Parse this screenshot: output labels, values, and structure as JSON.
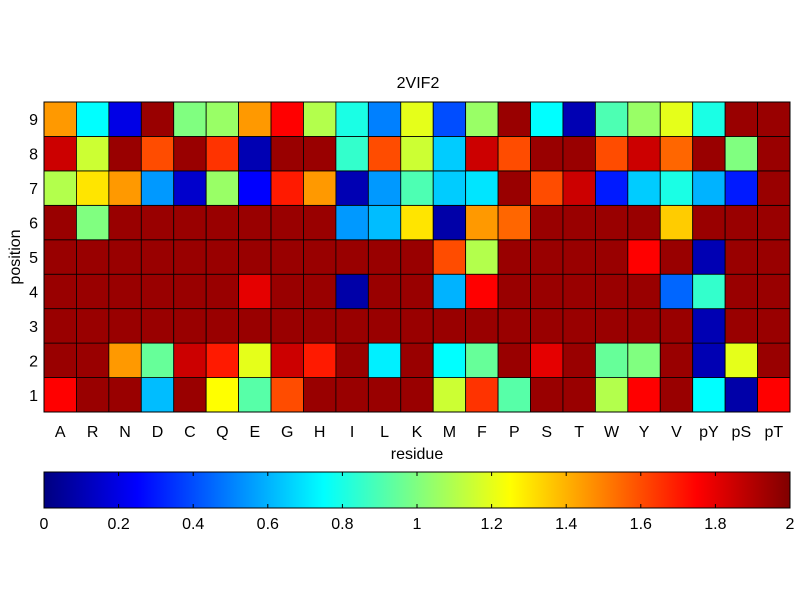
{
  "chart_data": {
    "type": "heatmap",
    "title": "2VIF2",
    "xlabel": "residue",
    "ylabel": "position",
    "x": [
      "A",
      "R",
      "N",
      "D",
      "C",
      "Q",
      "E",
      "G",
      "H",
      "I",
      "L",
      "K",
      "M",
      "F",
      "P",
      "S",
      "T",
      "W",
      "Y",
      "V",
      "pY",
      "pS",
      "pT"
    ],
    "y": [
      "1",
      "2",
      "3",
      "4",
      "5",
      "6",
      "7",
      "8",
      "9"
    ],
    "values": [
      [
        1.75,
        1.95,
        1.95,
        0.62,
        1.95,
        1.25,
        0.92,
        1.6,
        1.95,
        1.95,
        1.95,
        1.95,
        1.15,
        1.65,
        0.92,
        1.95,
        1.95,
        1.1,
        1.75,
        1.95,
        0.75,
        0.08,
        1.75
      ],
      [
        1.95,
        1.95,
        1.45,
        0.95,
        1.85,
        1.7,
        1.2,
        1.85,
        1.7,
        1.95,
        0.72,
        1.95,
        0.75,
        0.95,
        1.95,
        1.8,
        1.95,
        0.95,
        1.0,
        1.95,
        0.1,
        1.2,
        1.95
      ],
      [
        1.95,
        1.95,
        1.95,
        1.95,
        1.95,
        1.95,
        1.95,
        1.95,
        1.95,
        1.95,
        1.95,
        1.95,
        1.95,
        1.95,
        1.95,
        1.95,
        1.95,
        1.95,
        1.95,
        1.95,
        0.1,
        1.95,
        1.95
      ],
      [
        1.95,
        1.95,
        1.95,
        1.95,
        1.95,
        1.95,
        1.8,
        1.95,
        1.95,
        0.08,
        1.95,
        1.95,
        0.6,
        1.75,
        1.95,
        1.95,
        1.95,
        1.95,
        1.95,
        0.45,
        0.85,
        1.95,
        1.95
      ],
      [
        1.95,
        1.95,
        1.95,
        1.95,
        1.95,
        1.95,
        1.95,
        1.95,
        1.95,
        1.95,
        1.95,
        1.95,
        1.6,
        1.1,
        1.95,
        1.95,
        1.95,
        1.95,
        1.75,
        1.95,
        0.1,
        1.95,
        1.95
      ],
      [
        1.95,
        1.0,
        1.95,
        1.95,
        1.95,
        1.95,
        1.95,
        1.95,
        1.95,
        0.55,
        0.62,
        1.3,
        0.08,
        1.45,
        1.55,
        1.95,
        1.95,
        1.95,
        1.95,
        1.35,
        1.95,
        1.95,
        1.95
      ],
      [
        1.1,
        1.3,
        1.45,
        0.55,
        0.15,
        1.05,
        0.25,
        1.7,
        1.45,
        0.1,
        0.55,
        0.9,
        0.65,
        0.7,
        1.95,
        1.6,
        1.85,
        0.3,
        0.65,
        0.8,
        0.6,
        0.3,
        1.95
      ],
      [
        1.85,
        1.15,
        1.95,
        1.6,
        1.95,
        1.65,
        0.1,
        1.95,
        1.95,
        0.85,
        1.6,
        1.15,
        0.65,
        1.85,
        1.6,
        1.95,
        1.95,
        1.6,
        1.85,
        1.55,
        1.95,
        1.0,
        1.95
      ],
      [
        1.45,
        0.75,
        0.2,
        1.95,
        1.0,
        1.05,
        1.45,
        1.75,
        1.1,
        0.8,
        0.5,
        1.2,
        0.4,
        1.05,
        1.95,
        0.75,
        0.1,
        0.9,
        1.05,
        1.2,
        0.8,
        1.95,
        1.95
      ]
    ],
    "clim": [
      0,
      2
    ],
    "colormap": "jet",
    "colorbar": {
      "orientation": "horizontal",
      "placement": "bottom",
      "ticks": [
        "0",
        "0.2",
        "0.4",
        "0.6",
        "0.8",
        "1",
        "1.2",
        "1.4",
        "1.6",
        "1.8",
        "2"
      ]
    },
    "grid": true
  }
}
